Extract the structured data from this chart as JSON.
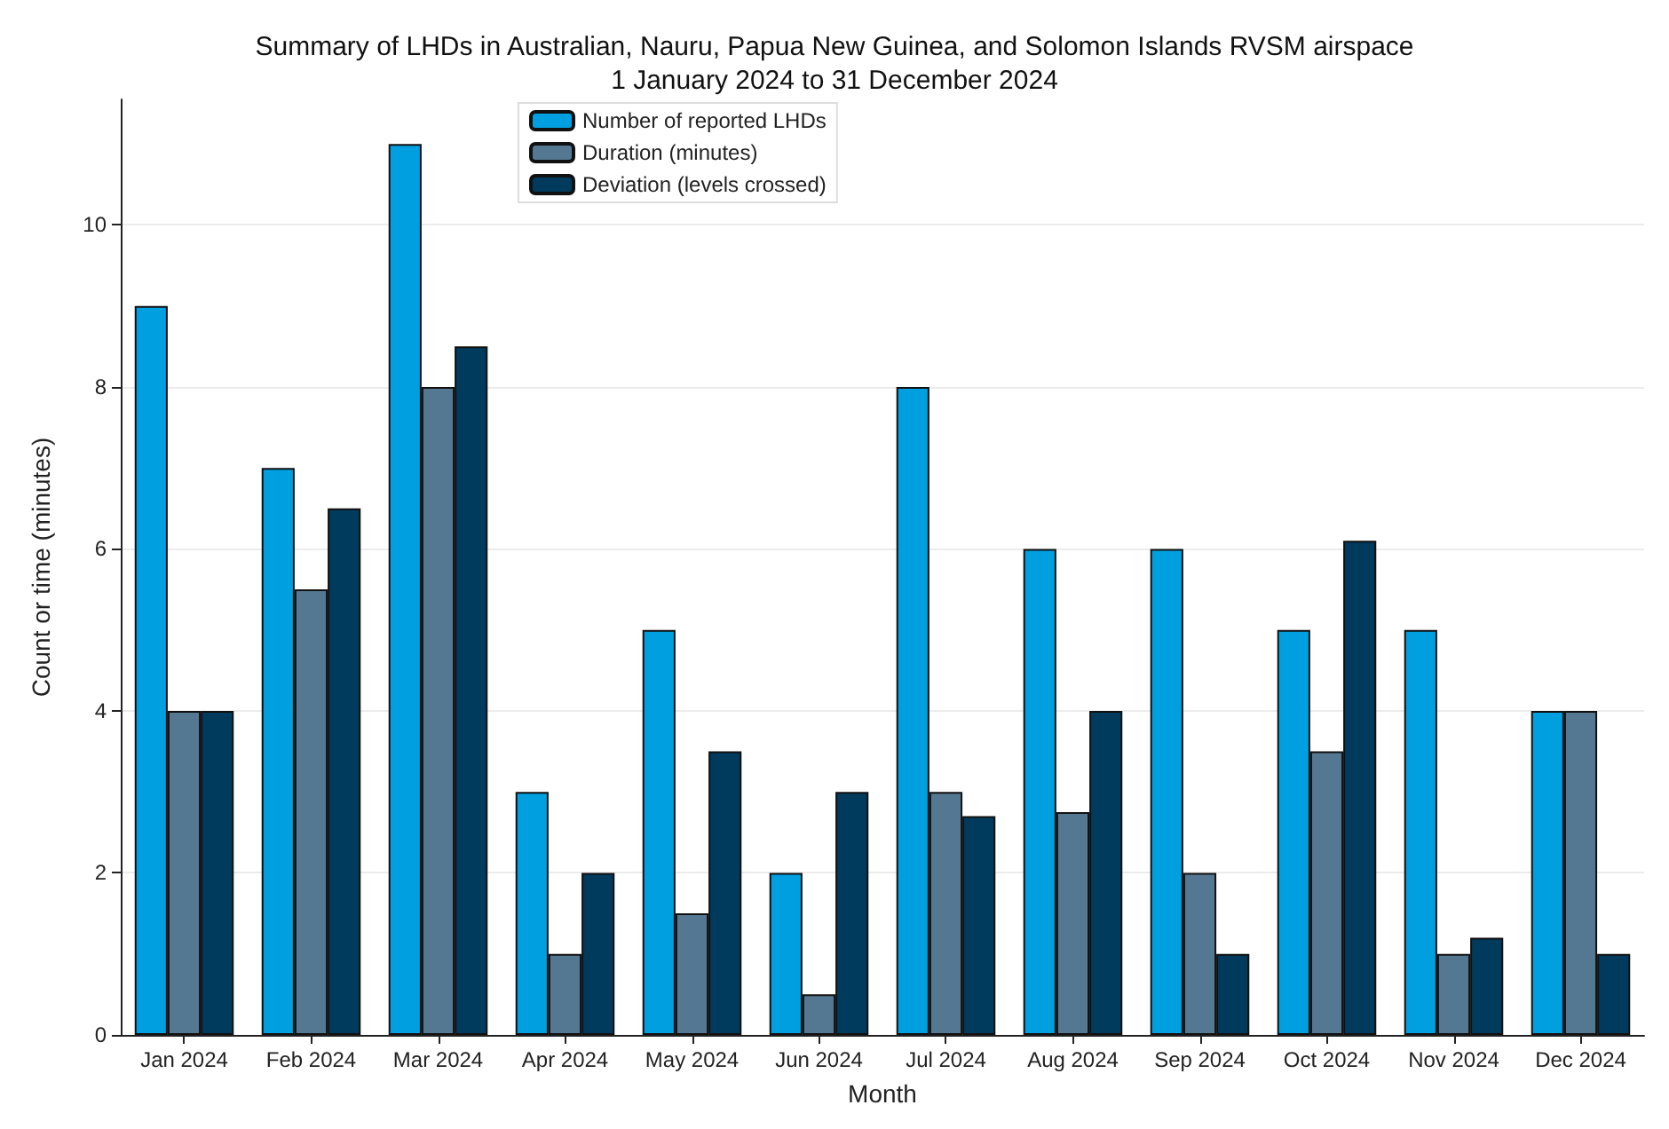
{
  "chart_data": {
    "type": "bar",
    "title": "Summary of LHDs in Australian, Nauru, Papua New Guinea, and Solomon Islands RVSM airspace\n1 January 2024 to 31 December 2024",
    "xlabel": "Month",
    "ylabel": "Count or time (minutes)",
    "categories": [
      "Jan 2024",
      "Feb 2024",
      "Mar 2024",
      "Apr 2024",
      "May 2024",
      "Jun 2024",
      "Jul 2024",
      "Aug 2024",
      "Sep 2024",
      "Oct 2024",
      "Nov 2024",
      "Dec 2024"
    ],
    "series": [
      {
        "name": "Number of reported LHDs",
        "color": "#009fdf",
        "values": [
          9,
          7,
          11,
          3,
          5,
          2,
          8,
          6,
          6,
          5,
          5,
          4
        ]
      },
      {
        "name": "Duration (minutes)",
        "color": "#557892",
        "values": [
          4,
          5.5,
          8,
          1,
          1.5,
          0.5,
          3,
          2.75,
          2,
          3.5,
          1,
          4
        ]
      },
      {
        "name": "Deviation (levels crossed)",
        "color": "#003a5c",
        "values": [
          4,
          6.5,
          8.5,
          2,
          3.5,
          3,
          2.7,
          4,
          1,
          6.1,
          1.2,
          1
        ]
      }
    ],
    "ylim": [
      0,
      11.55
    ],
    "yticks": [
      0,
      2,
      4,
      6,
      8,
      10
    ],
    "grid": "y",
    "legend": "top left"
  }
}
